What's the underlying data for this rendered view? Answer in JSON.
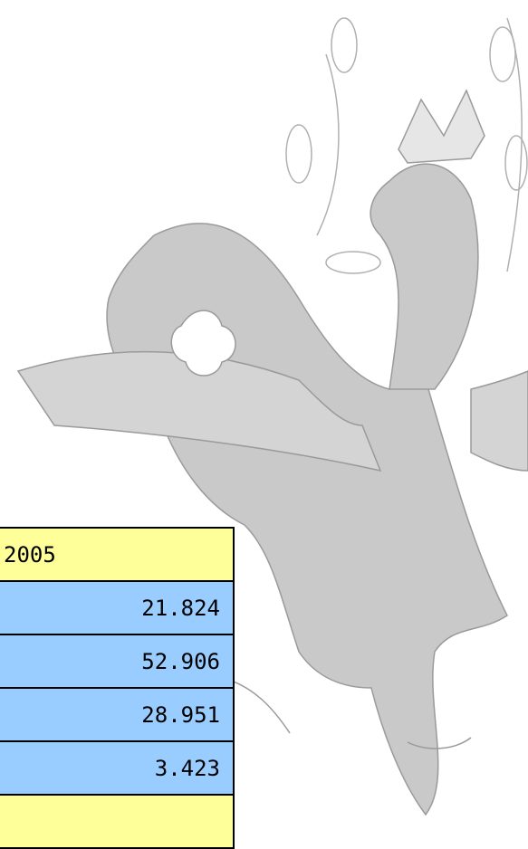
{
  "table": {
    "header": "2005",
    "rows": [
      "21.824",
      "52.906",
      "28.951",
      "3.423"
    ]
  }
}
